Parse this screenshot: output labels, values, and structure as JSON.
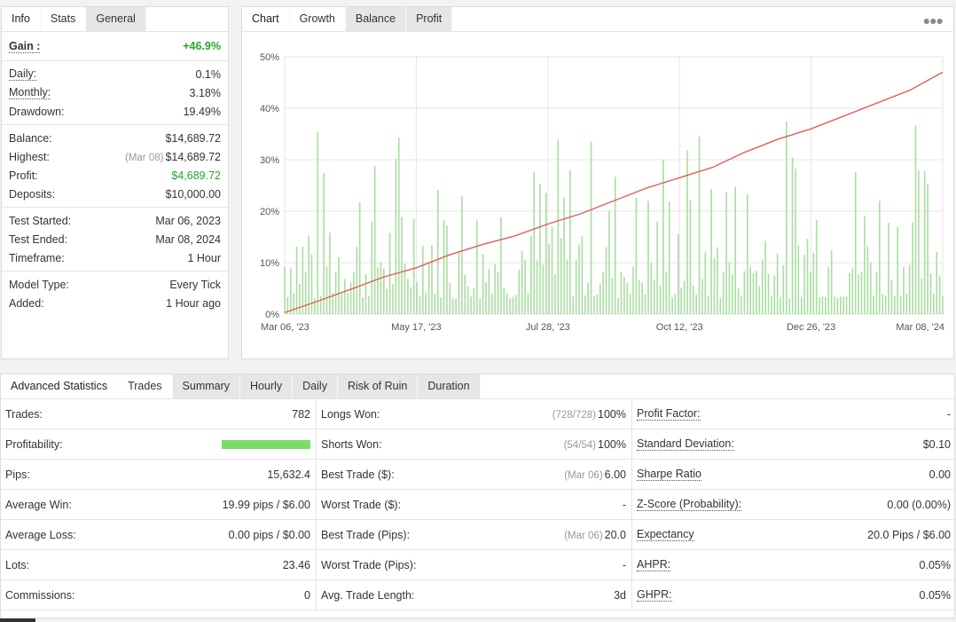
{
  "info_panel": {
    "tabs": [
      "Info",
      "Stats",
      "General"
    ],
    "active_tab": "Stats",
    "gain": {
      "label": "Gain :",
      "value": "+46.9%"
    },
    "group1": [
      {
        "label": "Daily:",
        "value": "0.1%",
        "dotted": true
      },
      {
        "label": "Monthly:",
        "value": "3.18%",
        "dotted": true
      },
      {
        "label": "Drawdown:",
        "value": "19.49%",
        "dotted": false
      }
    ],
    "group2": [
      {
        "label": "Balance:",
        "value": "$14,689.72",
        "note": ""
      },
      {
        "label": "Highest:",
        "value": "$14,689.72",
        "note": "(Mar 08)"
      },
      {
        "label": "Profit:",
        "value": "$4,689.72",
        "note": "",
        "green": true
      },
      {
        "label": "Deposits:",
        "value": "$10,000.00",
        "note": ""
      }
    ],
    "group3": [
      {
        "label": "Test Started:",
        "value": "Mar 06, 2023"
      },
      {
        "label": "Test Ended:",
        "value": "Mar 08, 2024"
      },
      {
        "label": "Timeframe:",
        "value": "1 Hour"
      }
    ],
    "group4": [
      {
        "label": "Model Type:",
        "value": "Every Tick"
      },
      {
        "label": "Added:",
        "value": "1 Hour ago"
      }
    ]
  },
  "chart_panel": {
    "tabs": [
      "Chart",
      "Growth",
      "Balance",
      "Profit"
    ],
    "active_tab": "Growth",
    "menu_icon": "more-dots-icon"
  },
  "chart_data": {
    "type": "line",
    "title": "",
    "xlabel": "",
    "ylabel": "",
    "y_tick_labels": [
      "0%",
      "10%",
      "20%",
      "30%",
      "40%",
      "50%"
    ],
    "ylim": [
      0,
      50
    ],
    "x_tick_labels": [
      "Mar 06, '23",
      "May 17, '23",
      "Jul 28, '23",
      "Oct 12, '23",
      "Dec 26, '23",
      "Mar 08, '24"
    ],
    "grid": true,
    "series": [
      {
        "type": "line",
        "color": "#e0605a",
        "points": [
          [
            0,
            0.3
          ],
          [
            0.05,
            2.5
          ],
          [
            0.1,
            4.8
          ],
          [
            0.15,
            7.2
          ],
          [
            0.2,
            9.0
          ],
          [
            0.25,
            11.5
          ],
          [
            0.3,
            13.5
          ],
          [
            0.35,
            15.2
          ],
          [
            0.4,
            17.5
          ],
          [
            0.45,
            19.5
          ],
          [
            0.5,
            22.0
          ],
          [
            0.55,
            24.5
          ],
          [
            0.6,
            26.5
          ],
          [
            0.65,
            28.5
          ],
          [
            0.7,
            31.5
          ],
          [
            0.75,
            34.0
          ],
          [
            0.8,
            36.0
          ],
          [
            0.85,
            38.5
          ],
          [
            0.9,
            41.0
          ],
          [
            0.95,
            43.5
          ],
          [
            1.0,
            47.0
          ]
        ]
      },
      {
        "type": "bar",
        "color": "#a8dea0",
        "note": "daily profit bars (approx.)"
      }
    ]
  },
  "adv_panel": {
    "tabs": [
      "Advanced Statistics",
      "Trades",
      "Summary",
      "Hourly",
      "Daily",
      "Risk of Ruin",
      "Duration"
    ],
    "active_tab": "Trades",
    "profitability_fraction": 1.0,
    "rows": [
      [
        {
          "label": "Trades:",
          "value": "782"
        },
        {
          "label": "Longs Won:",
          "note": "(728/728)",
          "value": "100%"
        },
        {
          "label": "Profit Factor:",
          "value": "-",
          "dotted": true
        }
      ],
      [
        {
          "label": "Profitability:",
          "bar": true
        },
        {
          "label": "Shorts Won:",
          "note": "(54/54)",
          "value": "100%"
        },
        {
          "label": "Standard Deviation:",
          "value": "$0.10",
          "dotted": true
        }
      ],
      [
        {
          "label": "Pips:",
          "value": "15,632.4"
        },
        {
          "label": "Best Trade ($):",
          "note": "(Mar 06)",
          "value": "6.00"
        },
        {
          "label": "Sharpe Ratio",
          "value": "0.00",
          "dotted": true
        }
      ],
      [
        {
          "label": "Average Win:",
          "value": "19.99 pips / $6.00"
        },
        {
          "label": "Worst Trade ($):",
          "value": "-"
        },
        {
          "label": "Z-Score (Probability):",
          "value": "0.00 (0.00%)",
          "dotted": true
        }
      ],
      [
        {
          "label": "Average Loss:",
          "value": "0.00 pips / $0.00"
        },
        {
          "label": "Best Trade (Pips):",
          "note": "(Mar 06)",
          "value": "20.0"
        },
        {
          "label": "Expectancy",
          "value": "20.0 Pips / $6.00",
          "dotted": true
        }
      ],
      [
        {
          "label": "Lots:",
          "value": "23.46"
        },
        {
          "label": "Worst Trade (Pips):",
          "value": "-"
        },
        {
          "label": "AHPR:",
          "value": "0.05%",
          "dotted": true
        }
      ],
      [
        {
          "label": "Commissions:",
          "value": "0"
        },
        {
          "label": "Avg. Trade Length:",
          "value": "3d"
        },
        {
          "label": "GHPR:",
          "value": "0.05%",
          "dotted": true
        }
      ]
    ]
  }
}
